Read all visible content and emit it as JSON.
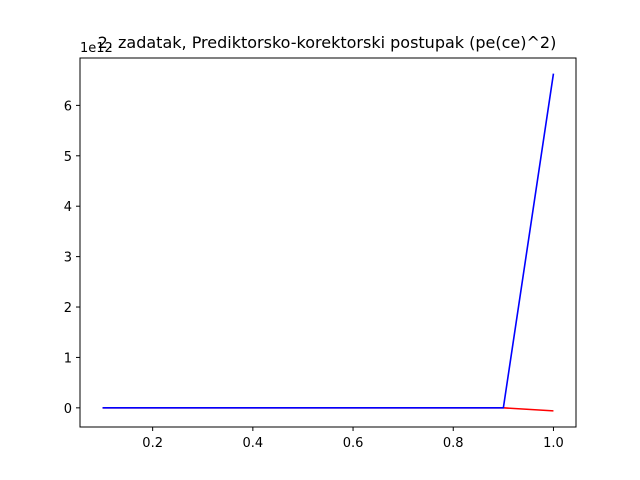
{
  "chart_data": {
    "type": "line",
    "title": "2. zadatak, Prediktorsko-korektorski postupak (pe(ce)^2)",
    "xlabel": "",
    "ylabel": "",
    "y_offset_label": "1e12",
    "y_scale_factor": 1000000000000,
    "xlim": [
      0.055,
      1.045
    ],
    "ylim": [
      -0.38,
      6.94
    ],
    "x_ticks": [
      0.2,
      0.4,
      0.6,
      0.8,
      1.0
    ],
    "x_tick_labels": [
      "0.2",
      "0.4",
      "0.6",
      "0.8",
      "1.0"
    ],
    "y_ticks": [
      0,
      1,
      2,
      3,
      4,
      5,
      6
    ],
    "y_tick_labels": [
      "0",
      "1",
      "2",
      "3",
      "4",
      "5",
      "6"
    ],
    "grid": false,
    "legend": "none",
    "x": [
      0.1,
      0.2,
      0.3,
      0.4,
      0.5,
      0.6,
      0.7,
      0.8,
      0.9,
      1.0
    ],
    "series": [
      {
        "color": "#ff0000",
        "values": [
          0,
          0,
          0,
          0,
          0,
          0,
          0,
          0,
          0,
          -0.06
        ]
      },
      {
        "color": "#0000ff",
        "values": [
          0,
          0,
          0,
          0,
          0,
          0,
          0,
          0,
          0,
          6.63
        ]
      }
    ]
  }
}
